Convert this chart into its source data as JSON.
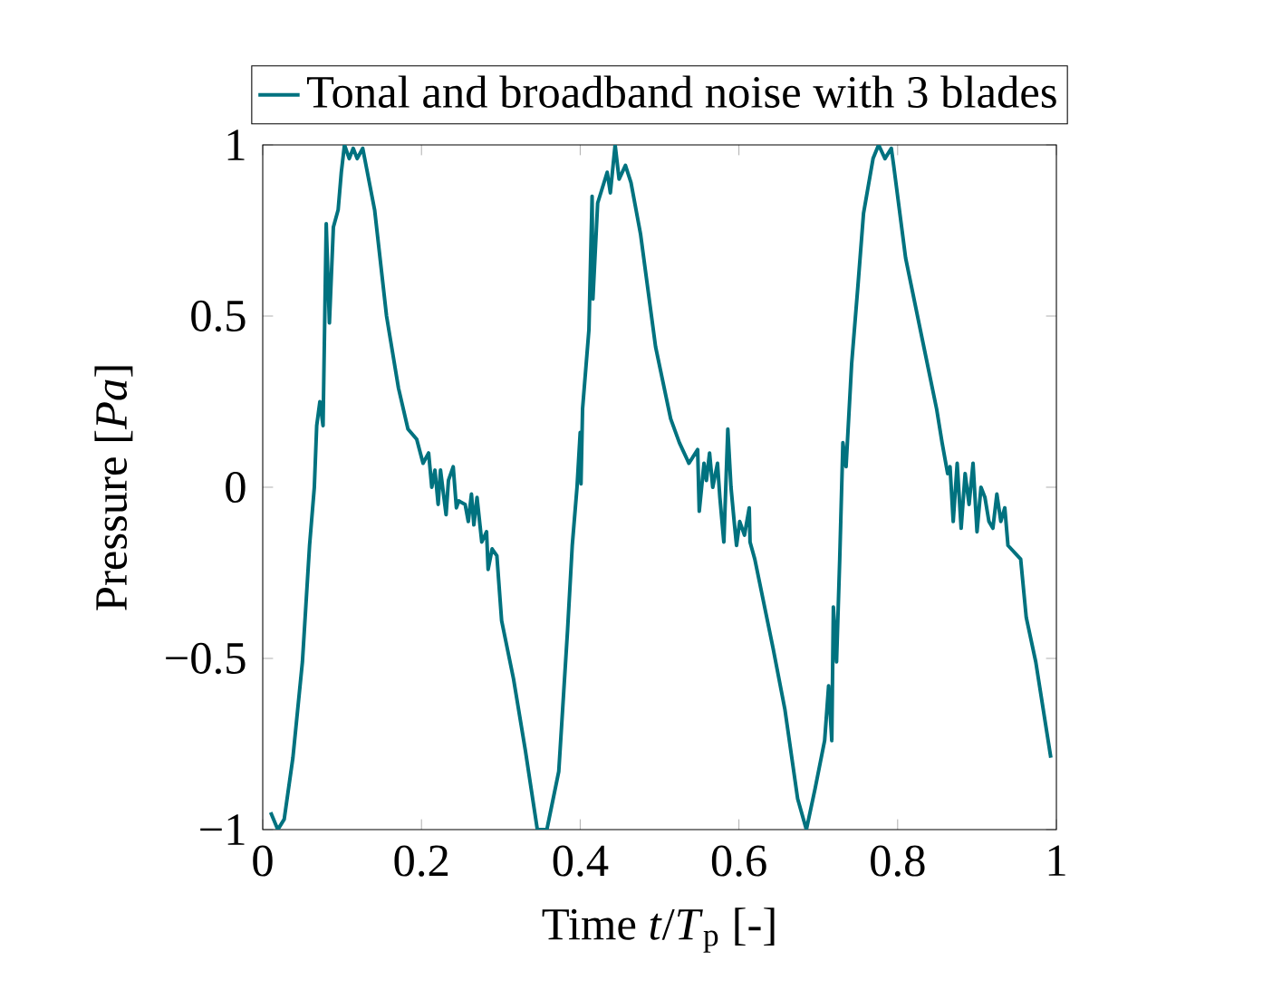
{
  "chart_data": {
    "type": "line",
    "xlabel": "Time *t*/*T*$_{p}$ [-]",
    "ylabel": "Pressure [*Pa*]",
    "legend": "top",
    "grid": false,
    "marker": "none",
    "line_style": "solid",
    "xlim": [
      0,
      1
    ],
    "ylim": [
      -1,
      1
    ],
    "xticks": [
      0,
      0.2,
      0.4,
      0.6,
      0.8,
      1
    ],
    "yticks": [
      {
        "value": -1,
        "label": "−1"
      },
      {
        "value": -0.5,
        "label": "−0.5"
      },
      0,
      0.5,
      1
    ],
    "series": [
      {
        "name": "Tonal and broadband noise with 3 blades",
        "color": "#00727f",
        "x": [
          0.01,
          0.019,
          0.027,
          0.038,
          0.05,
          0.059,
          0.065,
          0.068,
          0.072,
          0.076,
          0.08,
          0.084,
          0.089,
          0.095,
          0.099,
          0.103,
          0.109,
          0.114,
          0.119,
          0.126,
          0.141,
          0.156,
          0.171,
          0.183,
          0.194,
          0.202,
          0.209,
          0.213,
          0.217,
          0.221,
          0.224,
          0.231,
          0.234,
          0.24,
          0.244,
          0.247,
          0.255,
          0.259,
          0.263,
          0.266,
          0.27,
          0.276,
          0.282,
          0.284,
          0.289,
          0.295,
          0.301,
          0.316,
          0.331,
          0.346,
          0.358,
          0.373,
          0.384,
          0.39,
          0.396,
          0.4,
          0.401,
          0.403,
          0.411,
          0.415,
          0.416,
          0.422,
          0.434,
          0.438,
          0.444,
          0.449,
          0.457,
          0.464,
          0.476,
          0.495,
          0.514,
          0.525,
          0.537,
          0.548,
          0.55,
          0.556,
          0.559,
          0.563,
          0.567,
          0.573,
          0.576,
          0.581,
          0.586,
          0.59,
          0.594,
          0.597,
          0.601,
          0.607,
          0.613,
          0.614,
          0.62,
          0.643,
          0.658,
          0.674,
          0.685,
          0.696,
          0.708,
          0.713,
          0.717,
          0.719,
          0.723,
          0.727,
          0.731,
          0.735,
          0.742,
          0.75,
          0.757,
          0.769,
          0.776,
          0.784,
          0.792,
          0.795,
          0.81,
          0.833,
          0.849,
          0.856,
          0.863,
          0.866,
          0.87,
          0.875,
          0.88,
          0.885,
          0.89,
          0.895,
          0.9,
          0.905,
          0.91,
          0.915,
          0.92,
          0.925,
          0.93,
          0.935,
          0.939,
          0.955,
          0.962,
          0.974,
          0.993
        ],
        "values": [
          -0.95,
          -1.0,
          -0.97,
          -0.79,
          -0.51,
          -0.17,
          0.0,
          0.18,
          0.25,
          0.18,
          0.77,
          0.48,
          0.76,
          0.81,
          0.92,
          1.0,
          0.96,
          0.99,
          0.96,
          0.99,
          0.81,
          0.5,
          0.29,
          0.17,
          0.14,
          0.07,
          0.1,
          0.0,
          0.05,
          -0.05,
          0.05,
          -0.08,
          0.02,
          0.06,
          -0.06,
          -0.04,
          -0.05,
          -0.1,
          -0.02,
          -0.11,
          -0.03,
          -0.16,
          -0.13,
          -0.24,
          -0.18,
          -0.2,
          -0.39,
          -0.56,
          -0.77,
          -1.0,
          -1.0,
          -0.83,
          -0.42,
          -0.17,
          0.0,
          0.16,
          0.01,
          0.23,
          0.46,
          0.85,
          0.55,
          0.83,
          0.92,
          0.86,
          1.0,
          0.9,
          0.94,
          0.89,
          0.74,
          0.41,
          0.2,
          0.13,
          0.07,
          0.11,
          -0.07,
          0.07,
          0.02,
          0.1,
          0.0,
          0.07,
          -0.03,
          -0.16,
          0.17,
          0.0,
          -0.1,
          -0.17,
          -0.1,
          -0.14,
          -0.06,
          -0.16,
          -0.21,
          -0.47,
          -0.65,
          -0.91,
          -1.0,
          -0.88,
          -0.74,
          -0.58,
          -0.74,
          -0.35,
          -0.51,
          -0.21,
          0.13,
          0.06,
          0.36,
          0.59,
          0.8,
          0.96,
          1.0,
          0.96,
          0.99,
          0.94,
          0.67,
          0.41,
          0.23,
          0.13,
          0.04,
          0.06,
          -0.1,
          0.07,
          -0.12,
          0.04,
          -0.05,
          0.07,
          -0.13,
          0.0,
          -0.03,
          -0.1,
          -0.12,
          -0.02,
          -0.1,
          -0.06,
          -0.17,
          -0.21,
          -0.38,
          -0.51,
          -0.79
        ]
      }
    ]
  }
}
